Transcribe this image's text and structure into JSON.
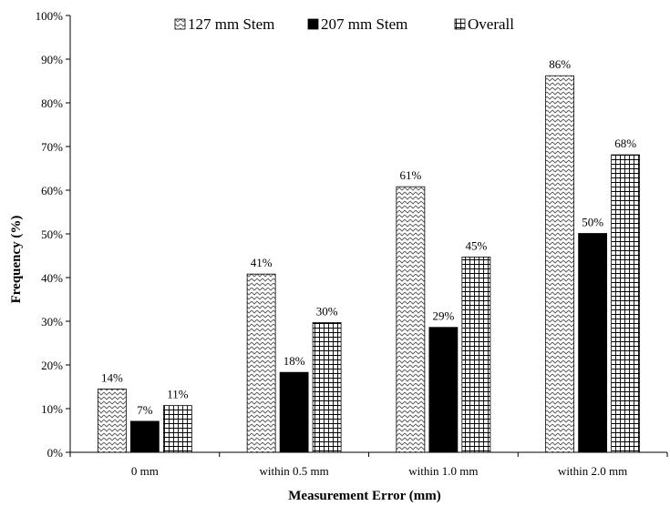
{
  "chart_data": {
    "type": "bar",
    "title": "",
    "xlabel": "Measurement Error (mm)",
    "ylabel": "Frequency (%)",
    "ylim": [
      0,
      100
    ],
    "y_tick_labels": [
      "0%",
      "10%",
      "20%",
      "30%",
      "40%",
      "50%",
      "60%",
      "70%",
      "80%",
      "90%",
      "100%"
    ],
    "categories": [
      "0 mm",
      "within 0.5 mm",
      "within 1.0 mm",
      "within 2.0 mm"
    ],
    "grid": false,
    "legend_position": "top",
    "series": [
      {
        "name": "127 mm Stem",
        "values": [
          14.5,
          40.8,
          60.8,
          86.2
        ],
        "labels": [
          "14%",
          "41%",
          "61%",
          "86%"
        ],
        "pattern": "zigzag"
      },
      {
        "name": "207 mm Stem",
        "values": [
          7.1,
          18.3,
          28.6,
          50.1
        ],
        "labels": [
          "7%",
          "18%",
          "29%",
          "50%"
        ],
        "pattern": "solid-black"
      },
      {
        "name": "Overall",
        "values": [
          10.7,
          29.7,
          44.7,
          68.1
        ],
        "labels": [
          "11%",
          "30%",
          "45%",
          "68%"
        ],
        "pattern": "grid"
      }
    ]
  }
}
